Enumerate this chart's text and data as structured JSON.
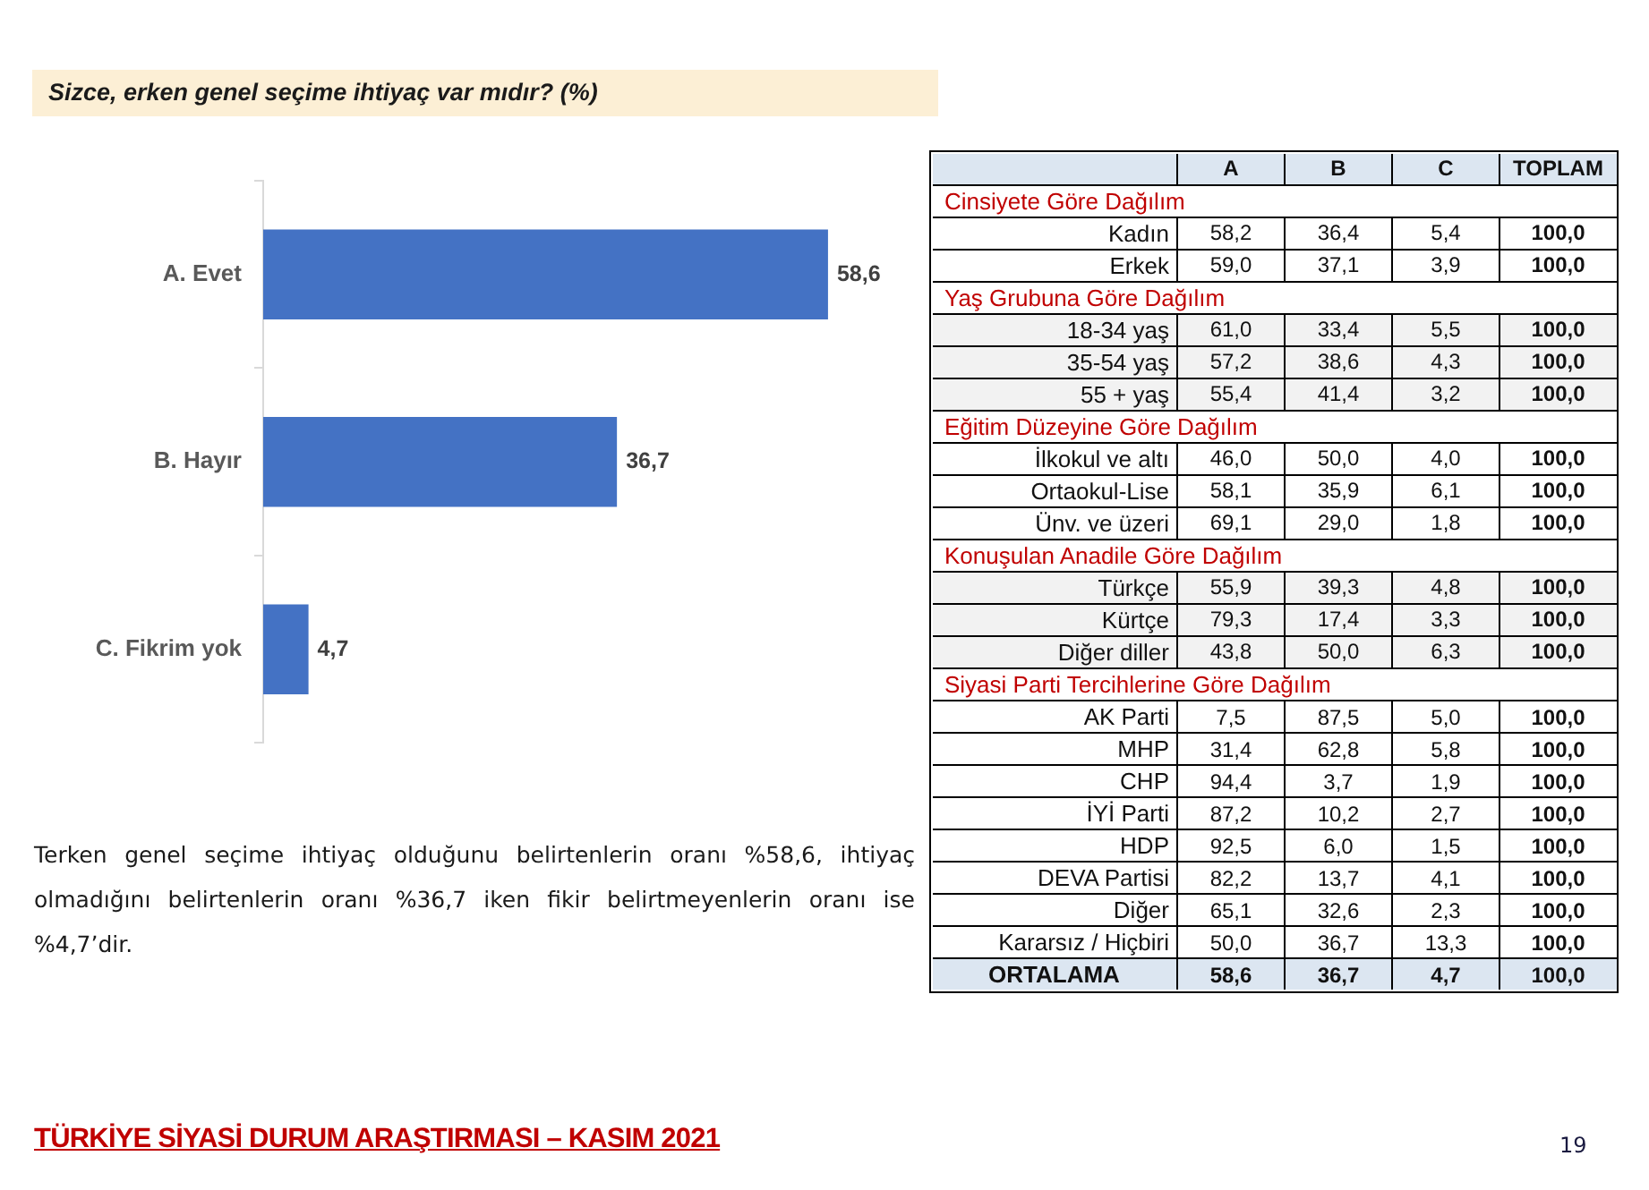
{
  "chart_data": [
    {
      "type": "bar",
      "orientation": "horizontal",
      "title": "Sizce, erken genel seçime ihtiyaç var mıdır? (%)",
      "categories": [
        "A. Evet",
        "B. Hayır",
        "C. Fikrim yok"
      ],
      "values": [
        58.6,
        36.7,
        4.7
      ],
      "color": "#4472c4",
      "value_labels": [
        "58,6",
        "36,7",
        "4,7"
      ],
      "tick_labels": "y",
      "annotations": [
        "Terken genel seçime ihtiyaç olduğunu belirtenlerin oranı %58,6, ihtiyaç olmadığını belirtenlerin oranı %36,7 iken fikir belirtmeyenlerin oranı ise %4,7’dir.",
        "TÜRKİYE SİYASİ DURUM ARAŞTIRMASI – KASIM 2021",
        "19"
      ]
    },
    {
      "type": "heatmap",
      "title": "Cinsiyete Göre Dağılım",
      "categories": [
        "A",
        "B",
        "C",
        "TOPLAM"
      ],
      "y_categories": [
        "Kadın",
        "Erkek"
      ],
      "cells": [
        [
          58.2,
          36.4,
          5.4,
          100.0
        ],
        [
          59.0,
          37.1,
          3.9,
          100.0
        ]
      ],
      "cell_labels": [
        [
          "58,2",
          "36,4",
          "5,4",
          "100,0"
        ],
        [
          "59,0",
          "37,1",
          "3,9",
          "100,0"
        ]
      ]
    },
    {
      "type": "heatmap",
      "title": "Yaş Grubuna Göre Dağılım",
      "categories": [
        null,
        null,
        null,
        null
      ],
      "y_categories": [
        "18-34 yaş",
        "35-54 yaş",
        "55 + yaş"
      ],
      "cells": [
        [
          61.0,
          33.4,
          5.5,
          100.0
        ],
        [
          57.2,
          38.6,
          4.3,
          100.0
        ],
        [
          55.4,
          41.4,
          3.2,
          100.0
        ]
      ],
      "cell_labels": [
        [
          "61,0",
          "33,4",
          "5,5",
          "100,0"
        ],
        [
          "57,2",
          "38,6",
          "4,3",
          "100,0"
        ],
        [
          "55,4",
          "41,4",
          "3,2",
          "100,0"
        ]
      ]
    },
    {
      "type": "heatmap",
      "title": "Eğitim Düzeyine Göre Dağılım",
      "categories": [
        null,
        null,
        null,
        null
      ],
      "y_categories": [
        "İlkokul ve altı",
        "Ortaokul-Lise",
        "Ünv. ve üzeri"
      ],
      "cells": [
        [
          46.0,
          50.0,
          4.0,
          100.0
        ],
        [
          58.1,
          35.9,
          6.1,
          100.0
        ],
        [
          69.1,
          29.0,
          1.8,
          100.0
        ]
      ],
      "cell_labels": [
        [
          "46,0",
          "50,0",
          "4,0",
          "100,0"
        ],
        [
          "58,1",
          "35,9",
          "6,1",
          "100,0"
        ],
        [
          "69,1",
          "29,0",
          "1,8",
          "100,0"
        ]
      ]
    },
    {
      "type": "heatmap",
      "title": "Konuşulan Anadile Göre Dağılım",
      "categories": [
        null,
        null,
        null,
        null
      ],
      "y_categories": [
        "Türkçe",
        "Kürtçe",
        "Diğer diller"
      ],
      "cells": [
        [
          55.9,
          39.3,
          4.8,
          100.0
        ],
        [
          79.3,
          17.4,
          3.3,
          100.0
        ],
        [
          43.8,
          50.0,
          6.3,
          100.0
        ]
      ],
      "cell_labels": [
        [
          "55,9",
          "39,3",
          "4,8",
          "100,0"
        ],
        [
          "79,3",
          "17,4",
          "3,3",
          "100,0"
        ],
        [
          "43,8",
          "50,0",
          "6,3",
          "100,0"
        ]
      ]
    },
    {
      "type": "heatmap",
      "title": "Siyasi Parti Tercihlerine Göre Dağılım",
      "categories": [
        null,
        null,
        null,
        null
      ],
      "y_categories": [
        "AK Parti",
        "MHP",
        "CHP",
        "İYİ Parti",
        "HDP",
        "DEVA Partisi",
        "Diğer",
        "Kararsız / Hiçbiri"
      ],
      "cells": [
        [
          7.5,
          87.5,
          5.0,
          100.0
        ],
        [
          31.4,
          62.8,
          5.8,
          100.0
        ],
        [
          94.4,
          3.7,
          1.9,
          100.0
        ],
        [
          87.2,
          10.2,
          2.7,
          100.0
        ],
        [
          92.5,
          6.0,
          1.5,
          100.0
        ],
        [
          82.2,
          13.7,
          4.1,
          100.0
        ],
        [
          65.1,
          32.6,
          2.3,
          100.0
        ],
        [
          50.0,
          36.7,
          13.3,
          100.0
        ]
      ],
      "cell_labels": [
        [
          "7,5",
          "87,5",
          "5,0",
          "100,0"
        ],
        [
          "31,4",
          "62,8",
          "5,8",
          "100,0"
        ],
        [
          "94,4",
          "3,7",
          "1,9",
          "100,0"
        ],
        [
          "87,2",
          "10,2",
          "2,7",
          "100,0"
        ],
        [
          "92,5",
          "6,0",
          "1,5",
          "100,0"
        ],
        [
          "82,2",
          "13,7",
          "4,1",
          "100,0"
        ],
        [
          "65,1",
          "32,6",
          "2,3",
          "100,0"
        ],
        [
          "50,0",
          "36,7",
          "13,3",
          "100,0"
        ]
      ]
    },
    {
      "type": "heatmap",
      "categories": [
        null,
        null,
        null,
        null
      ],
      "y_categories": [
        "ORTALAMA"
      ],
      "cells": [
        [
          58.6,
          36.7,
          4.7,
          100.0
        ]
      ],
      "cell_labels": [
        [
          "58,6",
          "36,7",
          "4,7",
          "100,0"
        ]
      ]
    }
  ]
}
